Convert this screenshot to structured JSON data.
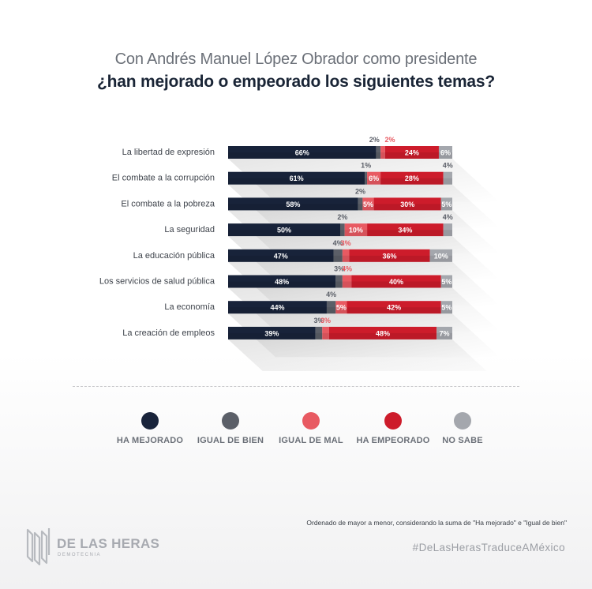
{
  "title_line1": "Con Andrés Manuel López Obrador como presidente",
  "title_line2": "¿han mejorado o empeorado los siguientes temas?",
  "colors": {
    "ha_mejorado": "#18233a",
    "igual_de_bien": "#5b5f68",
    "igual_de_mal": "#e85a62",
    "ha_empeorado": "#cd1c2b",
    "no_sabe": "#a4a7ad"
  },
  "chart_data": {
    "type": "bar",
    "orientation": "horizontal-stacked",
    "categories": [
      "La libertad de expresión",
      "El combate a la corrupción",
      "El combate a la pobreza",
      "La seguridad",
      "La educación pública",
      "Los servicios de salud pública",
      "La economía",
      "La creación de empleos"
    ],
    "series": [
      {
        "name": "HA MEJORADO",
        "values": [
          66,
          61,
          58,
          50,
          47,
          48,
          44,
          39
        ]
      },
      {
        "name": "IGUAL DE BIEN",
        "values": [
          2,
          1,
          2,
          2,
          4,
          3,
          4,
          3
        ]
      },
      {
        "name": "IGUAL DE MAL",
        "values": [
          2,
          6,
          5,
          10,
          3,
          4,
          5,
          3
        ]
      },
      {
        "name": "HA EMPEORADO",
        "values": [
          24,
          28,
          30,
          34,
          36,
          40,
          42,
          48
        ]
      },
      {
        "name": "NO SABE",
        "values": [
          6,
          4,
          5,
          4,
          10,
          5,
          5,
          7
        ]
      }
    ],
    "xlim": [
      0,
      100
    ],
    "grid": false,
    "legend_position": "bottom"
  },
  "legend": [
    {
      "label": "HA MEJORADO",
      "color": "#18233a"
    },
    {
      "label": "IGUAL DE BIEN",
      "color": "#5b5f68"
    },
    {
      "label": "IGUAL DE MAL",
      "color": "#e85a62"
    },
    {
      "label": "HA EMPEORADO",
      "color": "#cd1c2b"
    },
    {
      "label": "NO SABE",
      "color": "#a4a7ad"
    }
  ],
  "note": "Ordenado de mayor a menor, considerando la suma de \"Ha mejorado\" e \"Igual de bien\"",
  "logo": {
    "name": "DE LAS HERAS",
    "sub": "DEMOTECNIA"
  },
  "hashtag": "#DeLasHerasTraduceAMéxico"
}
